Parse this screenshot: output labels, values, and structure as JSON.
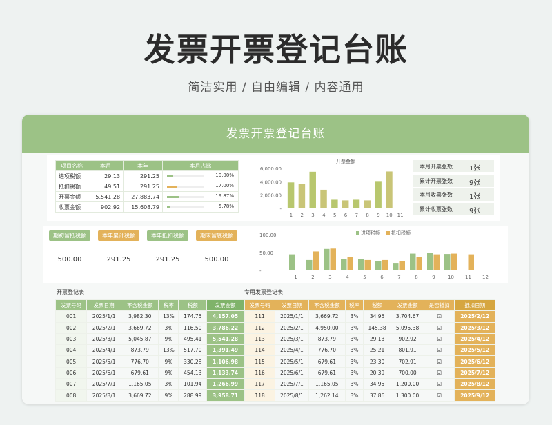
{
  "hero": {
    "title": "发票开票登记台账",
    "subtitle": "简洁实用 / 自由编辑 / 内容通用"
  },
  "sheet": {
    "banner": "发票开票登记台账"
  },
  "summary": {
    "headers": [
      "项目名称",
      "本月",
      "本年",
      "本月占比"
    ],
    "rows": [
      {
        "name": "进项税额",
        "month": "29.13",
        "year": "291.25",
        "pct": "10.00%",
        "ratio": 0.1
      },
      {
        "name": "抵扣税额",
        "month": "49.51",
        "year": "291.25",
        "pct": "17.00%",
        "ratio": 0.17
      },
      {
        "name": "开票金额",
        "month": "5,541.28",
        "year": "27,883.74",
        "pct": "19.87%",
        "ratio": 0.1987
      },
      {
        "name": "收票金额",
        "month": "902.92",
        "year": "15,608.79",
        "pct": "5.78%",
        "ratio": 0.0578
      }
    ]
  },
  "stats": [
    {
      "label": "本月开票张数",
      "value": "1张"
    },
    {
      "label": "累计开票张数",
      "value": "9张"
    },
    {
      "label": "本月收票张数",
      "value": "1张"
    },
    {
      "label": "累计收票张数",
      "value": "9张"
    }
  ],
  "kpis": [
    {
      "label": "期初留抵税额",
      "value": "500.00",
      "color": "#9cc286"
    },
    {
      "label": "本年累计税额",
      "value": "291.25",
      "color": "#e3b25a"
    },
    {
      "label": "本年抵扣税额",
      "value": "291.25",
      "color": "#9cc286"
    },
    {
      "label": "期末留底税额",
      "value": "500.00",
      "color": "#e3b25a"
    }
  ],
  "chart_data": [
    {
      "type": "bar",
      "title": "开票金额",
      "categories": [
        "1",
        "2",
        "3",
        "4",
        "5",
        "6",
        "7",
        "8",
        "9",
        "10",
        "11"
      ],
      "values": [
        3900,
        3700,
        5500,
        2800,
        1300,
        1200,
        1300,
        1200,
        4000,
        5540,
        0
      ],
      "ylim": [
        0,
        6000
      ],
      "yticks": [
        "6,000.00",
        "4,000.00",
        "2,000.00",
        "-"
      ]
    },
    {
      "type": "bar",
      "categories": [
        "1",
        "2",
        "3",
        "4",
        "5",
        "6",
        "7",
        "8",
        "9",
        "10",
        "11",
        "12"
      ],
      "series": [
        {
          "name": "进项税额",
          "color": "#9cc286",
          "values": [
            45,
            29,
            60,
            32,
            31,
            25,
            21,
            47,
            49,
            46,
            0,
            0
          ]
        },
        {
          "name": "抵扣税额",
          "color": "#e3b25a",
          "values": [
            0,
            53,
            61,
            38,
            29,
            29,
            25,
            37,
            45,
            47,
            45,
            0
          ]
        }
      ],
      "ylim": [
        0,
        100
      ],
      "yticks": [
        "100.00",
        "50.00",
        "-"
      ]
    }
  ],
  "reg1": {
    "title": "开票登记表",
    "headers": [
      "发票号码",
      "发票日期",
      "不含税金额",
      "税率",
      "税额",
      "发票金额"
    ],
    "rows": [
      [
        "001",
        "2025/1/1",
        "3,982.30",
        "13%",
        "174.75",
        "4,157.05"
      ],
      [
        "002",
        "2025/2/1",
        "3,669.72",
        "3%",
        "116.50",
        "3,786.22"
      ],
      [
        "003",
        "2025/3/1",
        "5,045.87",
        "9%",
        "495.41",
        "5,541.28"
      ],
      [
        "004",
        "2025/4/1",
        "873.79",
        "13%",
        "517.70",
        "1,391.49"
      ],
      [
        "005",
        "2025/5/1",
        "776.70",
        "9%",
        "330.28",
        "1,106.98"
      ],
      [
        "006",
        "2025/6/1",
        "679.61",
        "9%",
        "454.13",
        "1,133.74"
      ],
      [
        "007",
        "2025/7/1",
        "1,165.05",
        "3%",
        "101.94",
        "1,266.99"
      ],
      [
        "008",
        "2025/8/1",
        "3,669.72",
        "9%",
        "288.99",
        "3,958.71"
      ]
    ]
  },
  "reg2": {
    "title": "专用发票登记表",
    "headers": [
      "发票号码",
      "发票日期",
      "不含税金额",
      "税率",
      "税额",
      "发票金额",
      "是否抵扣",
      "抵扣日期"
    ],
    "rows": [
      [
        "111",
        "2025/1/1",
        "3,669.72",
        "3%",
        "34.95",
        "3,704.67",
        "☑",
        "2025/2/12"
      ],
      [
        "112",
        "2025/2/1",
        "4,950.00",
        "3%",
        "145.38",
        "5,095.38",
        "☑",
        "2025/3/12"
      ],
      [
        "113",
        "2025/3/1",
        "873.79",
        "3%",
        "29.13",
        "902.92",
        "☑",
        "2025/4/12"
      ],
      [
        "114",
        "2025/4/1",
        "776.70",
        "3%",
        "25.21",
        "801.91",
        "☑",
        "2025/5/12"
      ],
      [
        "115",
        "2025/5/1",
        "679.61",
        "3%",
        "23.30",
        "702.91",
        "☑",
        "2025/6/12"
      ],
      [
        "116",
        "2025/6/1",
        "679.61",
        "3%",
        "20.39",
        "700.00",
        "☑",
        "2025/7/12"
      ],
      [
        "117",
        "2025/7/1",
        "1,165.05",
        "3%",
        "34.95",
        "1,200.00",
        "☑",
        "2025/8/12"
      ],
      [
        "118",
        "2025/8/1",
        "1,262.14",
        "3%",
        "37.86",
        "1,300.00",
        "☑",
        "2025/9/12"
      ]
    ]
  }
}
